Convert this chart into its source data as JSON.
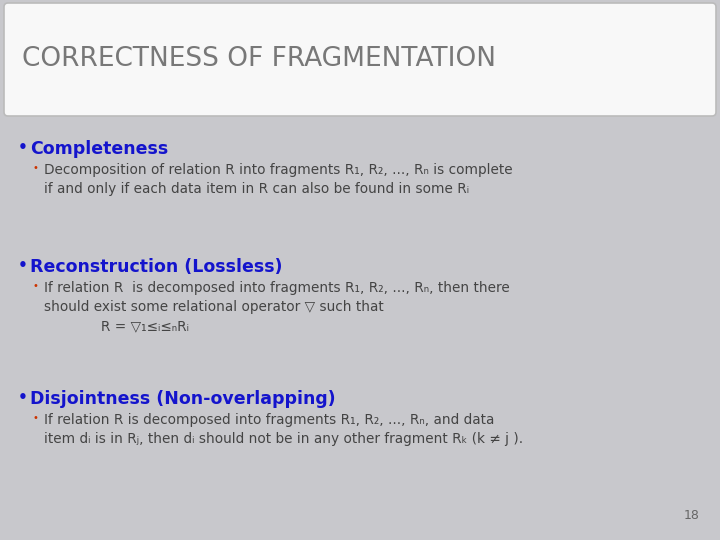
{
  "title": "CORRECTNESS OF FRAGMENTATION",
  "bg_color": "#c8c8cc",
  "title_bg": "#f8f8f8",
  "title_color": "#787878",
  "bullet_color": "#1414cc",
  "sub_bullet_color": "#cc3300",
  "text_color": "#444444",
  "page_number": "18",
  "title_fontsize": 19,
  "heading_fontsize": 12.5,
  "body_fontsize": 9.8,
  "sections": [
    {
      "heading": "Completeness",
      "sub_text": "Decomposition of relation R into fragments R₁, R₂, ..., Rₙ is complete\nif and only if each data item in R can also be found in some Rᵢ"
    },
    {
      "heading": "Reconstruction (Lossless)",
      "sub_text": "If relation R  is decomposed into fragments R₁, R₂, ..., Rₙ, then there\nshould exist some relational operator ▽ such that\n             R = ▽₁≤ᵢ≤ₙRᵢ"
    },
    {
      "heading": "Disjointness (Non-overlapping)",
      "sub_text": "If relation R is decomposed into fragments R₁, R₂, ..., Rₙ, and data\nitem dᵢ is in Rⱼ, then dᵢ should not be in any other fragment Rₖ (k ≠ j )."
    }
  ]
}
